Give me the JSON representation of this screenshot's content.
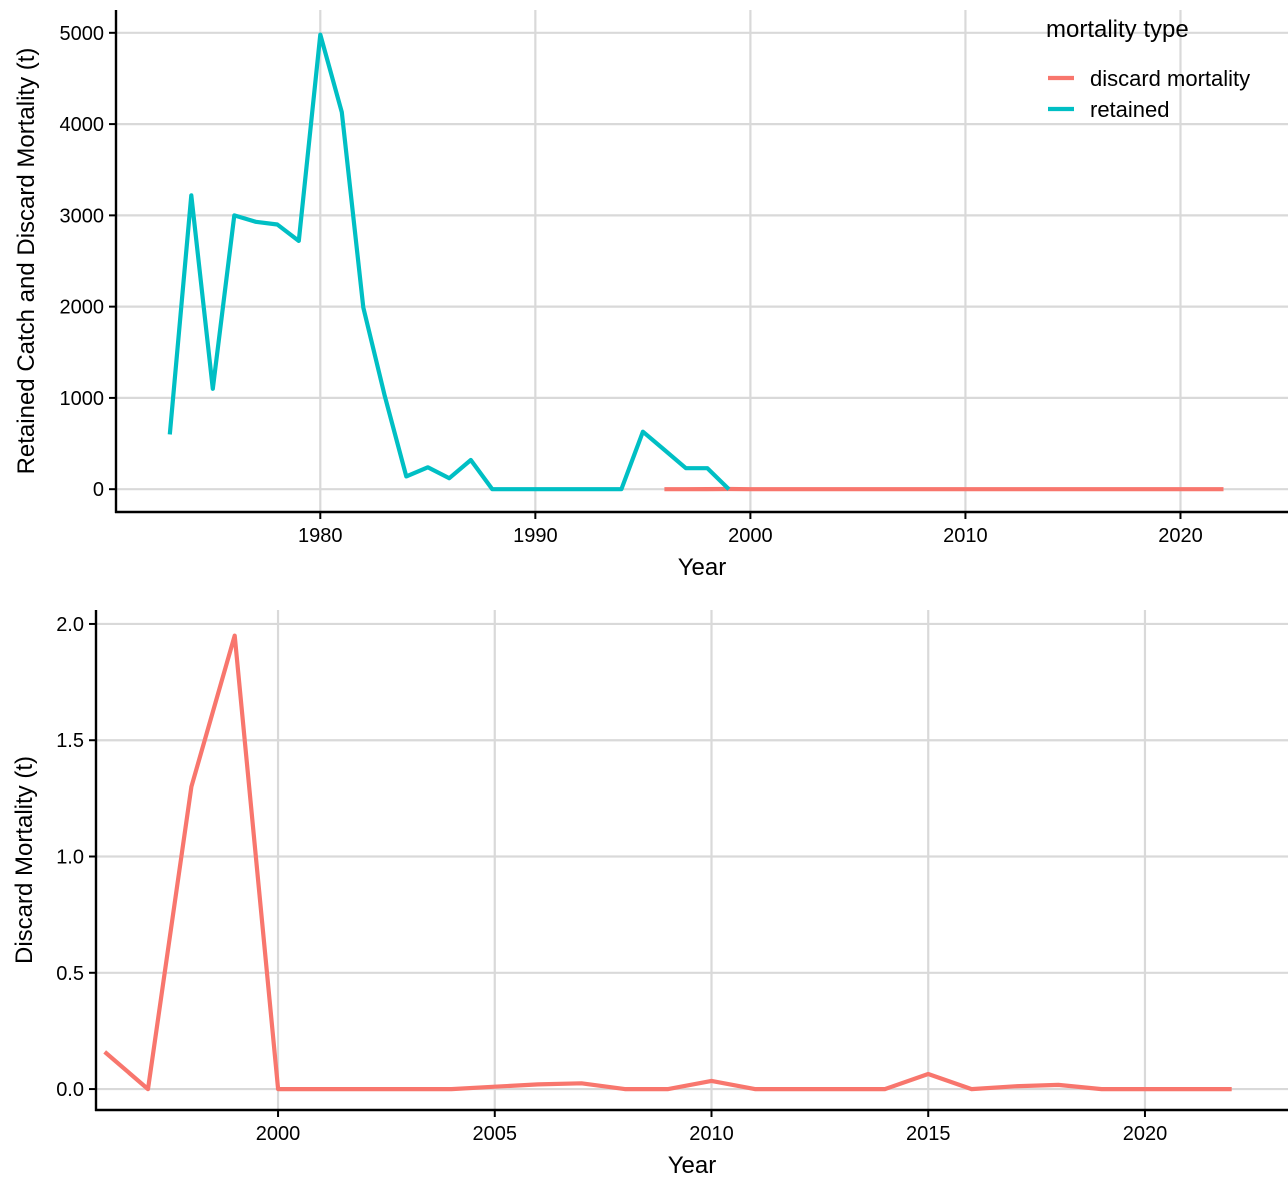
{
  "chart_data": [
    {
      "type": "line",
      "xlabel": "Year",
      "ylabel": "Retained Catch and Discard Mortality (t)",
      "xlim": [
        1970.5,
        2025
      ],
      "ylim": [
        -250,
        5250
      ],
      "xticks": [
        1980,
        1990,
        2000,
        2010,
        2020
      ],
      "yticks": [
        0,
        1000,
        2000,
        3000,
        4000,
        5000
      ],
      "grid": true,
      "legend": {
        "title": "mortality type",
        "placement": "top-right"
      },
      "series": [
        {
          "name": "discard mortality",
          "color": "#F8766D",
          "points": [
            [
              1996,
              0.16
            ],
            [
              1997,
              0
            ],
            [
              1998,
              1.3
            ],
            [
              1999,
              1.95
            ],
            [
              2000,
              0
            ],
            [
              2001,
              0
            ],
            [
              2002,
              0
            ],
            [
              2003,
              0
            ],
            [
              2004,
              0
            ],
            [
              2005,
              0.01
            ],
            [
              2006,
              0.02
            ],
            [
              2007,
              0.025
            ],
            [
              2008,
              0
            ],
            [
              2009,
              0
            ],
            [
              2010,
              0.035
            ],
            [
              2011,
              0
            ],
            [
              2012,
              0
            ],
            [
              2013,
              0
            ],
            [
              2014,
              0
            ],
            [
              2015,
              0.065
            ],
            [
              2016,
              0
            ],
            [
              2017,
              0.012
            ],
            [
              2018,
              0.018
            ],
            [
              2019,
              0
            ],
            [
              2020,
              0
            ],
            [
              2021,
              0
            ],
            [
              2022,
              0
            ]
          ]
        },
        {
          "name": "retained",
          "color": "#00BFC4",
          "points": [
            [
              1973,
              600
            ],
            [
              1974,
              3220
            ],
            [
              1975,
              1100
            ],
            [
              1976,
              3000
            ],
            [
              1977,
              2930
            ],
            [
              1978,
              2900
            ],
            [
              1979,
              2720
            ],
            [
              1980,
              4980
            ],
            [
              1981,
              4130
            ],
            [
              1982,
              1990
            ],
            [
              1983,
              1020
            ],
            [
              1984,
              140
            ],
            [
              1985,
              240
            ],
            [
              1986,
              120
            ],
            [
              1987,
              320
            ],
            [
              1988,
              0
            ],
            [
              1989,
              0
            ],
            [
              1990,
              0
            ],
            [
              1991,
              0
            ],
            [
              1992,
              0
            ],
            [
              1993,
              0
            ],
            [
              1994,
              0
            ],
            [
              1995,
              630
            ],
            [
              1996,
              430
            ],
            [
              1997,
              230
            ],
            [
              1998,
              230
            ],
            [
              1999,
              0
            ]
          ]
        }
      ]
    },
    {
      "type": "line",
      "xlabel": "Year",
      "ylabel": "Discard Mortality (t)",
      "xlim": [
        1995.8,
        2023.3
      ],
      "ylim": [
        -0.09,
        2.06
      ],
      "xticks": [
        2000,
        2005,
        2010,
        2015,
        2020
      ],
      "yticks": [
        "0.0",
        "0.5",
        "1.0",
        "1.5",
        "2.0"
      ],
      "grid": true,
      "series": [
        {
          "color": "#F8766D",
          "points": [
            [
              1996,
              0.16
            ],
            [
              1997,
              0
            ],
            [
              1998,
              1.3
            ],
            [
              1999,
              1.95
            ],
            [
              2000,
              0
            ],
            [
              2001,
              0
            ],
            [
              2002,
              0
            ],
            [
              2003,
              0
            ],
            [
              2004,
              0
            ],
            [
              2005,
              0.01
            ],
            [
              2006,
              0.02
            ],
            [
              2007,
              0.025
            ],
            [
              2008,
              0
            ],
            [
              2009,
              0
            ],
            [
              2010,
              0.035
            ],
            [
              2011,
              0
            ],
            [
              2012,
              0
            ],
            [
              2013,
              0
            ],
            [
              2014,
              0
            ],
            [
              2015,
              0.065
            ],
            [
              2016,
              0
            ],
            [
              2017,
              0.012
            ],
            [
              2018,
              0.018
            ],
            [
              2019,
              0
            ],
            [
              2020,
              0
            ],
            [
              2021,
              0
            ],
            [
              2022,
              0
            ]
          ]
        }
      ]
    }
  ]
}
